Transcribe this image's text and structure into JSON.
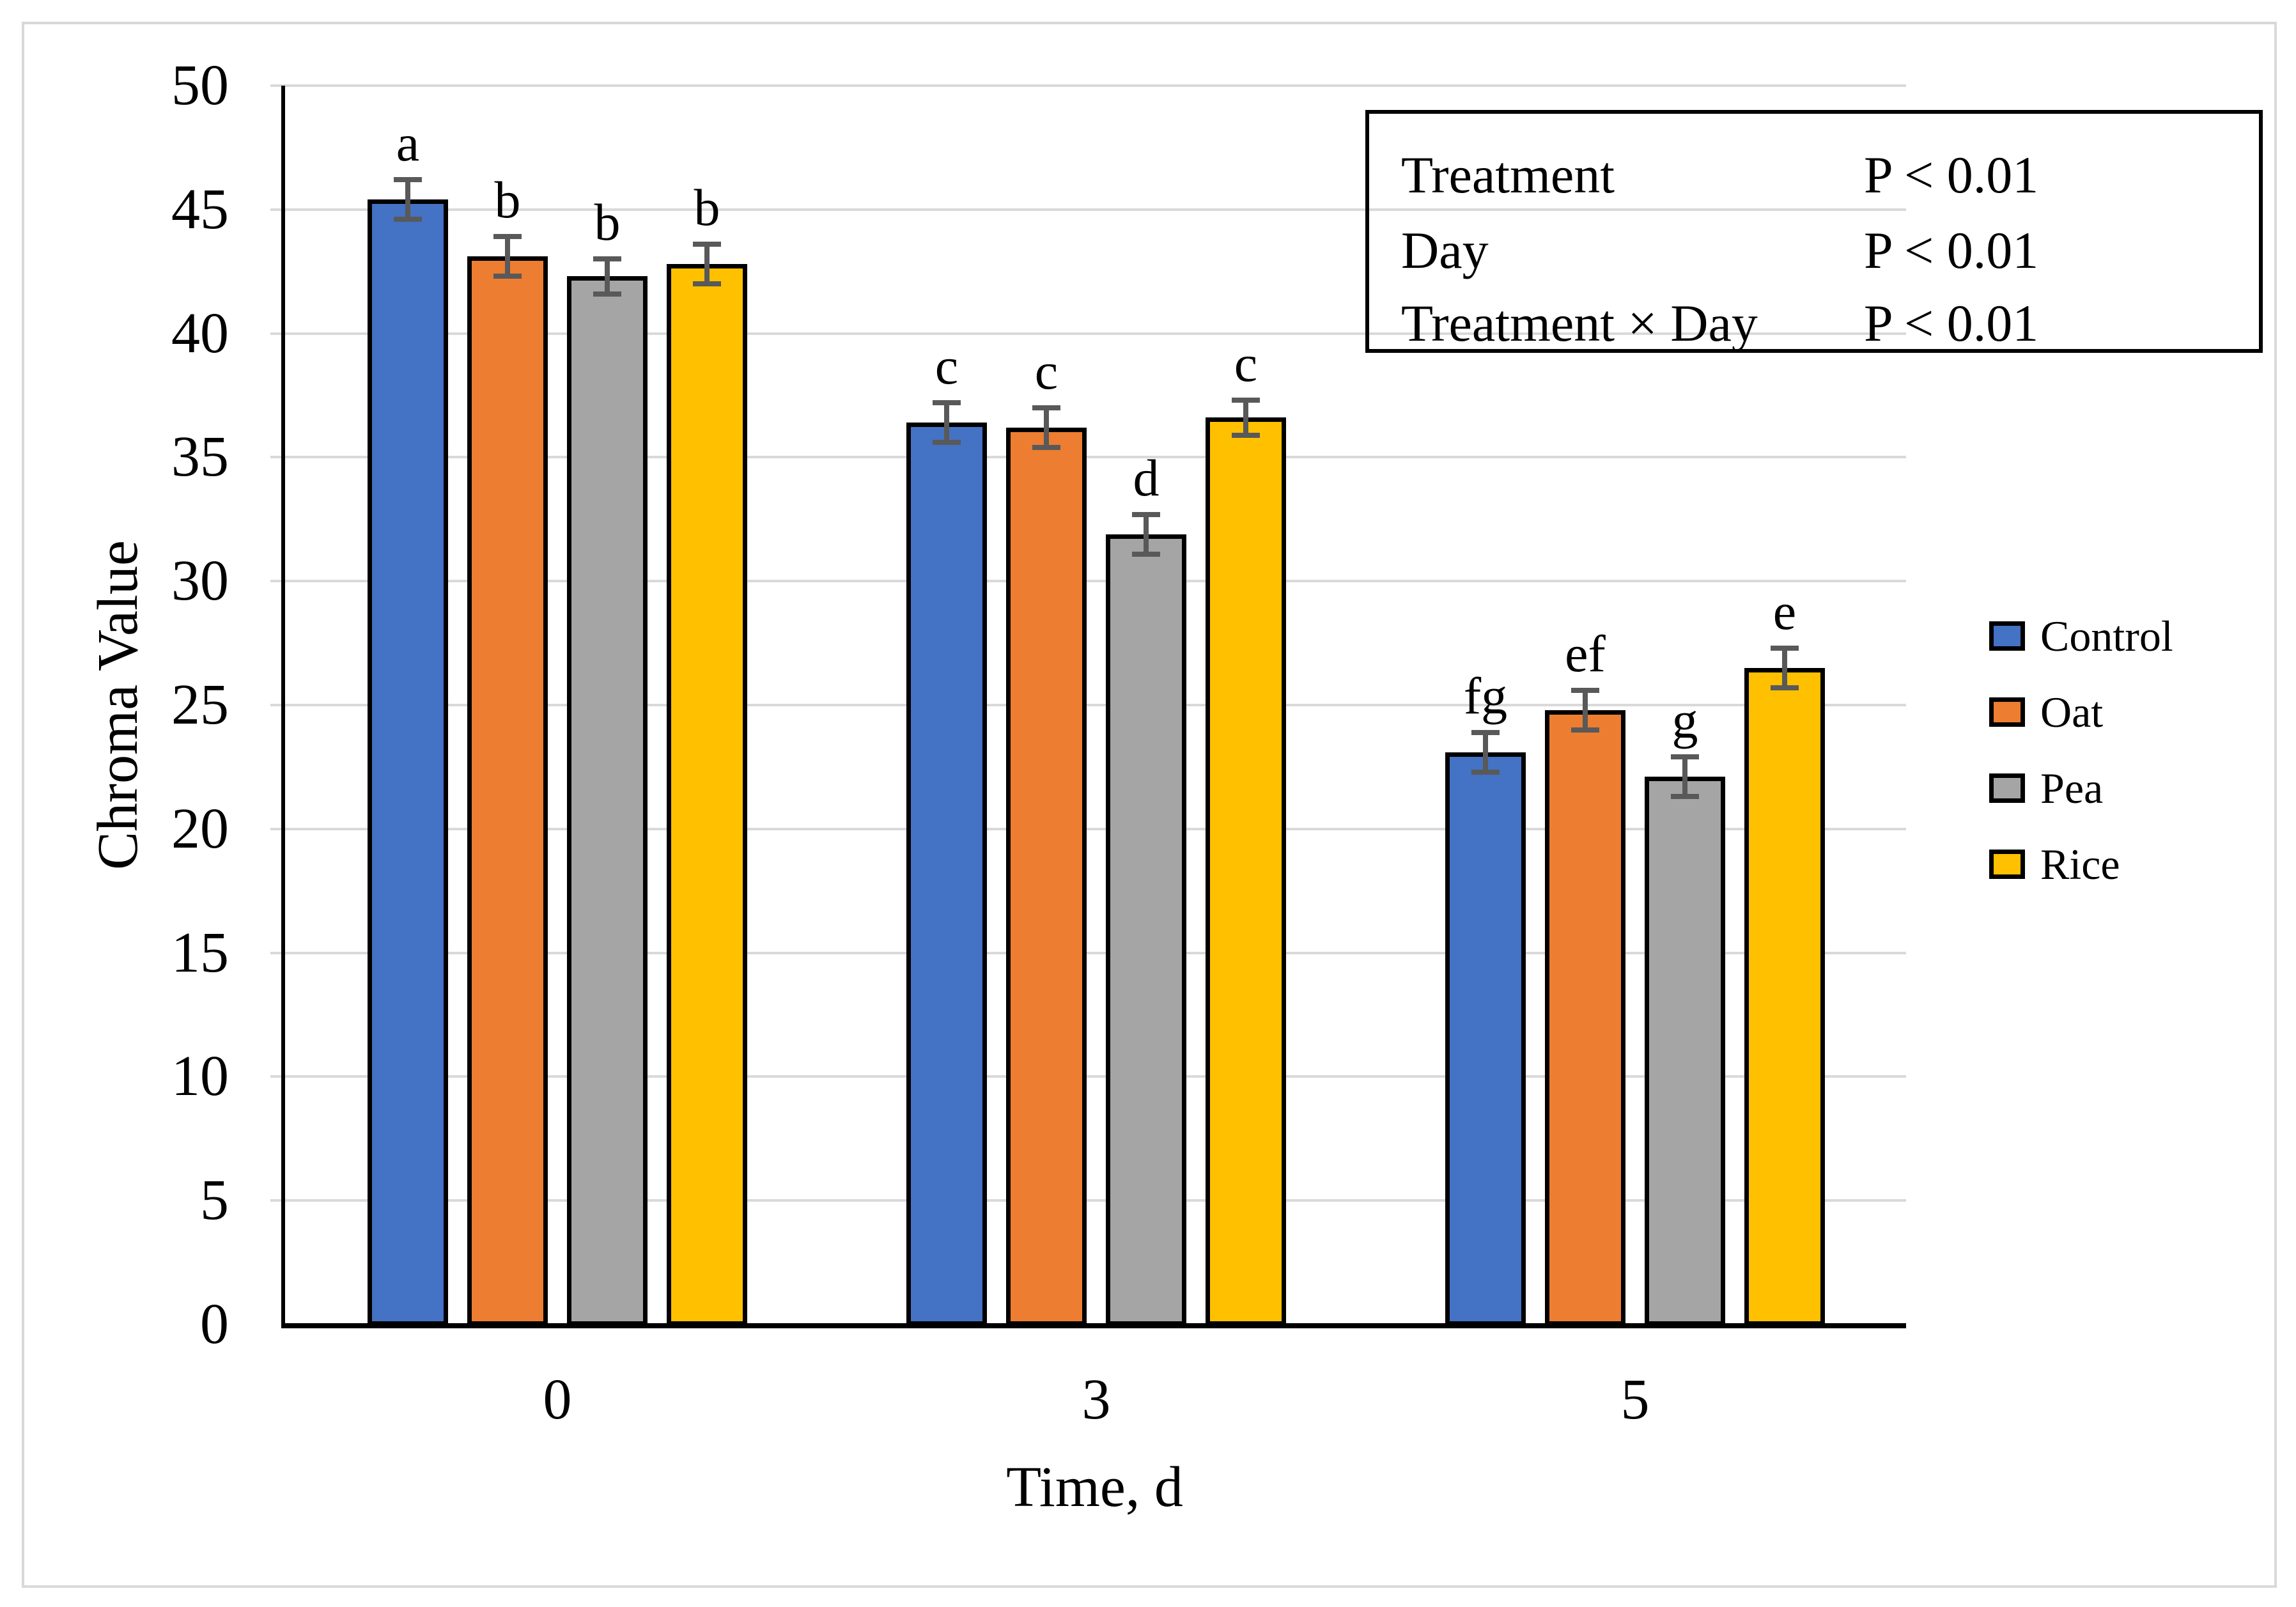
{
  "figure": {
    "frame_color": "#D9D9D9",
    "background": "#FFFFFF",
    "gridline_color": "#D9D9D9",
    "axis_color": "#000000",
    "error_bar_color": "#595959",
    "bar_border_color": "#000000"
  },
  "chart_data": {
    "type": "bar",
    "title": "",
    "xlabel": "Time, d",
    "ylabel": "Chroma Value",
    "categories": [
      "0",
      "3",
      "5"
    ],
    "series": [
      {
        "name": "Control",
        "color": "#4472C4",
        "values": [
          45.4,
          36.4,
          23.1
        ],
        "errors": [
          0.8,
          0.8,
          0.8
        ],
        "letters": [
          "a",
          "c",
          "fg"
        ]
      },
      {
        "name": "Oat",
        "color": "#ED7D31",
        "values": [
          43.1,
          36.2,
          24.8
        ],
        "errors": [
          0.8,
          0.8,
          0.8
        ],
        "letters": [
          "b",
          "c",
          "ef"
        ]
      },
      {
        "name": "Pea",
        "color": "#A5A5A5",
        "values": [
          42.3,
          31.9,
          22.1
        ],
        "errors": [
          0.7,
          0.8,
          0.8
        ],
        "letters": [
          "b",
          "d",
          "g"
        ]
      },
      {
        "name": "Rice",
        "color": "#FFC000",
        "values": [
          42.8,
          36.6,
          26.5
        ],
        "errors": [
          0.8,
          0.7,
          0.8
        ],
        "letters": [
          "b",
          "c",
          "e"
        ]
      }
    ],
    "ylim": [
      0,
      50
    ],
    "ytick_step": 5,
    "grid": true,
    "legend_position": "right"
  },
  "stats_box": {
    "rows": [
      {
        "label": "Treatment",
        "value": "P < 0.01"
      },
      {
        "label": "Day",
        "value": "P < 0.01"
      },
      {
        "label": "Treatment × Day",
        "value": "P < 0.01"
      }
    ]
  }
}
